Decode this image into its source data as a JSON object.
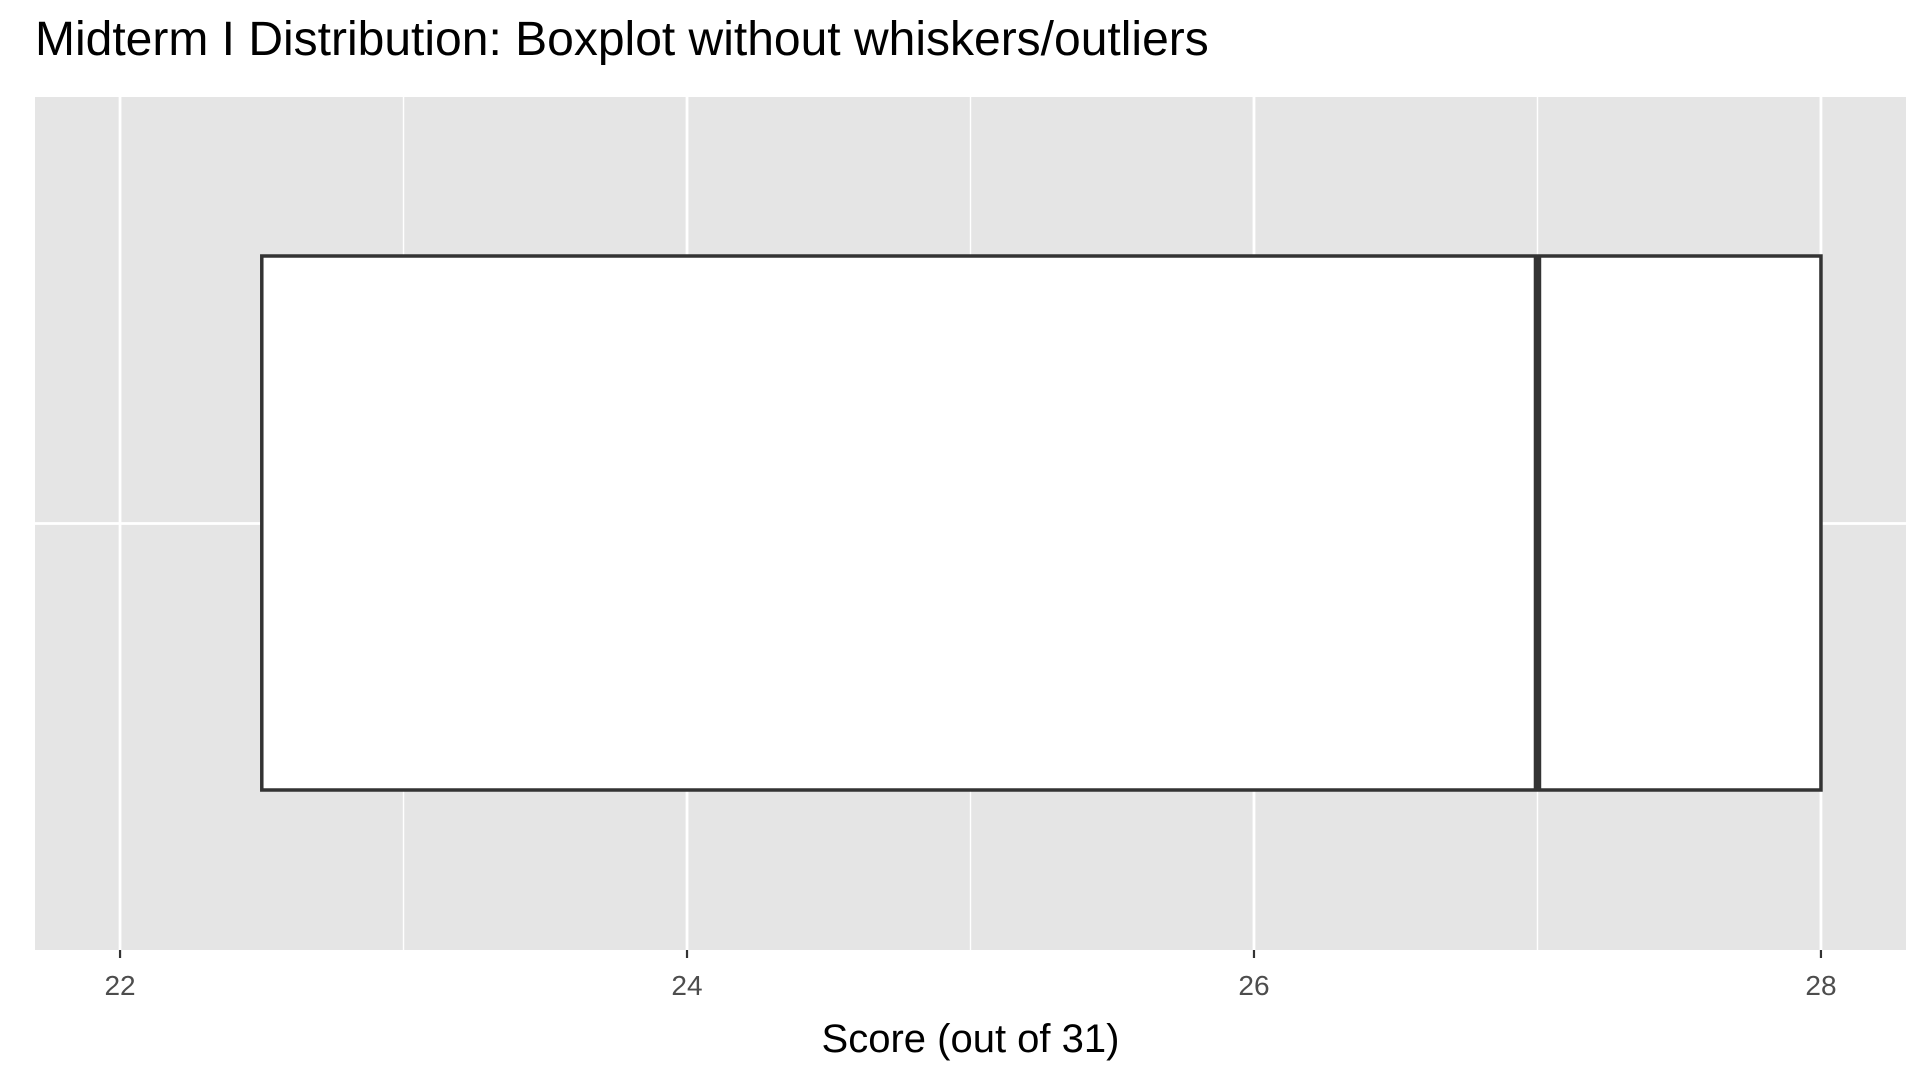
{
  "chart_data": {
    "type": "boxplot",
    "title": "Midterm I Distribution: Boxplot without whiskers/outliers",
    "xlabel": "Score (out of 31)",
    "ylabel": "",
    "xlim": [
      21.7,
      28.3
    ],
    "x_ticks": [
      22,
      24,
      26,
      28
    ],
    "x_tick_labels": [
      "22",
      "24",
      "26",
      "28"
    ],
    "box": {
      "q1": 22.5,
      "median": 27,
      "q3": 28
    },
    "whiskers": false,
    "outliers": false,
    "grid": true,
    "legend": "none",
    "colors": {
      "panel_background": "#E5E5E5",
      "grid": "#FFFFFF",
      "box_fill": "#FFFFFF",
      "box_outline": "#333333",
      "tick_label": "#4D4D4D"
    }
  }
}
